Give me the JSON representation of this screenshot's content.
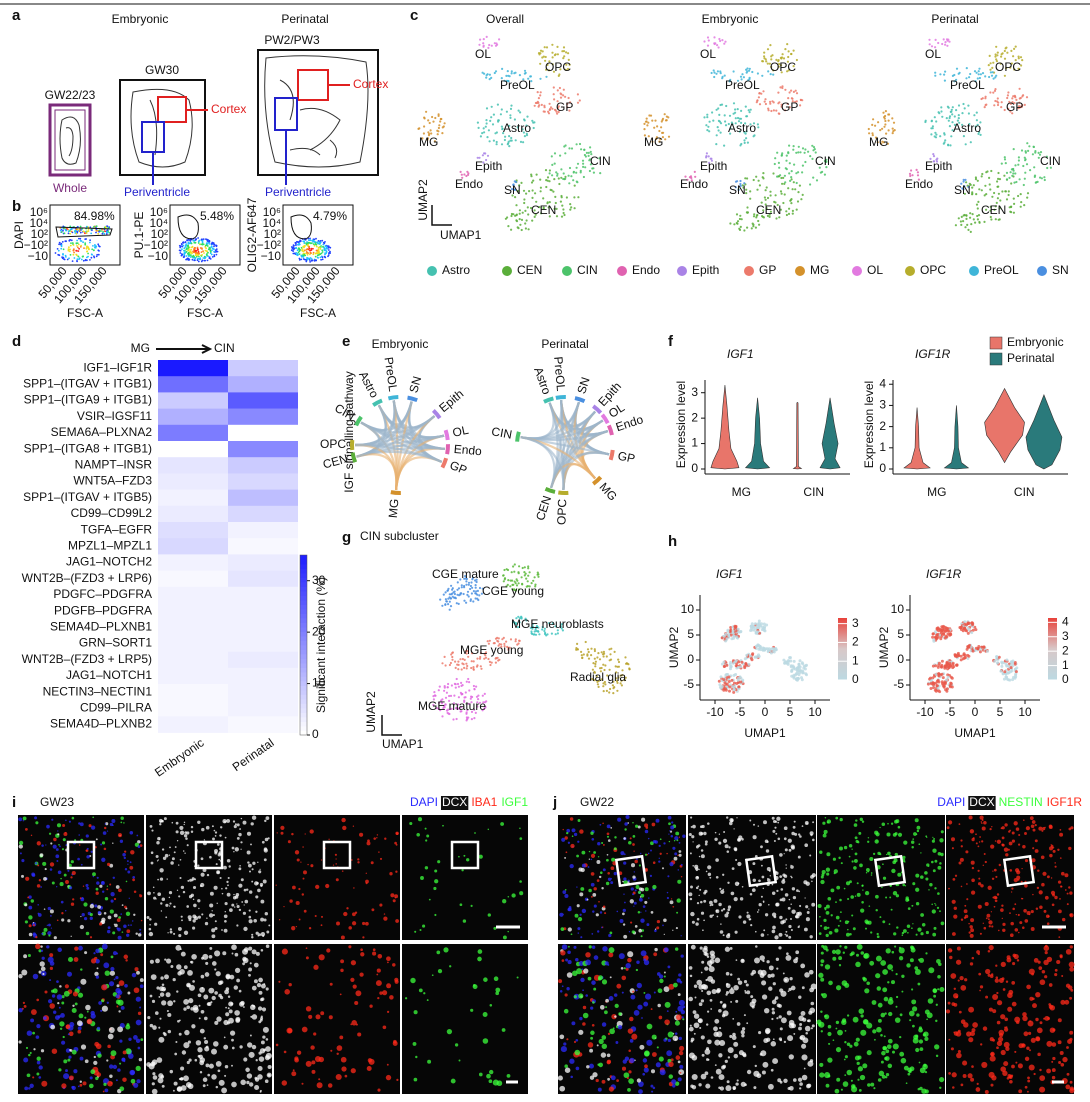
{
  "panels": {
    "a": {
      "label": "a",
      "embryonic": "Embryonic",
      "perinatal": "Perinatal",
      "samples": [
        "GW22/23",
        "GW30",
        "PW2/PW3"
      ],
      "whole": "Whole",
      "cortex": "Cortex",
      "periventricle": "Periventricle"
    },
    "b": {
      "label": "b",
      "plots": [
        {
          "y_label": "DAPI",
          "gate": "84.98%"
        },
        {
          "y_label": "PU.1-PE",
          "gate": "5.48%"
        },
        {
          "y_label": "OLIG2-AF647",
          "gate": "4.79%"
        }
      ],
      "x_label": "FSC-A",
      "x_ticks": [
        "50,000",
        "100,000",
        "150,000"
      ],
      "y_ticks": [
        "10⁶",
        "10⁴",
        "10²",
        "−10²",
        "−10"
      ]
    },
    "c": {
      "label": "c",
      "titles": [
        "Overall",
        "Embryonic",
        "Perinatal"
      ],
      "axis": [
        "UMAP1",
        "UMAP2"
      ],
      "legend": [
        {
          "name": "Astro",
          "color": "#45c1b0"
        },
        {
          "name": "CEN",
          "color": "#5aae3a"
        },
        {
          "name": "CIN",
          "color": "#4cc36a"
        },
        {
          "name": "Endo",
          "color": "#e062b0"
        },
        {
          "name": "Epith",
          "color": "#a983e6"
        },
        {
          "name": "GP",
          "color": "#ec7a6b"
        },
        {
          "name": "MG",
          "color": "#d4912b"
        },
        {
          "name": "OL",
          "color": "#e27ae0"
        },
        {
          "name": "OPC",
          "color": "#b6ad2c"
        },
        {
          "name": "PreOL",
          "color": "#3fb5d8"
        },
        {
          "name": "SN",
          "color": "#4a8fe0"
        }
      ]
    },
    "d": {
      "label": "d",
      "type": "heatmap",
      "source": "MG",
      "target": "CIN",
      "rows": [
        "IGF1–IGF1R",
        "SPP1–(ITGAV + ITGB1)",
        "SPP1–(ITGA9 + ITGB1)",
        "VSIR–IGSF11",
        "SEMA6A–PLXNA2",
        "SPP1–(ITGA8 + ITGB1)",
        "NAMPT–INSR",
        "WNT5A–FZD3",
        "SPP1–(ITGAV + ITGB5)",
        "CD99–CD99L2",
        "TGFA–EGFR",
        "MPZL1–MPZL1",
        "JAG1–NOTCH2",
        "WNT2B–(FZD3 + LRP6)",
        "PDGFC–PDGFRA",
        "PDGFB–PDGFRA",
        "SEMA4D–PLXNB1",
        "GRN–SORT1",
        "WNT2B–(FZD3 + LRP5)",
        "JAG1–NOTCH1",
        "NECTIN3–NECTIN1",
        "CD99–PILRA",
        "SEMA4D–PLXNB2"
      ],
      "columns": [
        "Embryonic",
        "Perinatal"
      ],
      "values": [
        [
          35,
          8
        ],
        [
          22,
          12
        ],
        [
          8,
          25
        ],
        [
          12,
          18
        ],
        [
          20,
          0
        ],
        [
          0,
          18
        ],
        [
          4,
          8
        ],
        [
          3,
          6
        ],
        [
          2,
          10
        ],
        [
          3,
          6
        ],
        [
          5,
          2
        ],
        [
          6,
          1
        ],
        [
          2,
          3
        ],
        [
          1,
          4
        ],
        [
          2,
          2
        ],
        [
          2,
          2
        ],
        [
          2,
          2
        ],
        [
          2,
          2
        ],
        [
          2,
          3
        ],
        [
          2,
          2
        ],
        [
          1,
          2
        ],
        [
          1,
          2
        ],
        [
          2,
          1
        ]
      ],
      "color": "#1a1aff",
      "zlim": [
        0,
        35
      ],
      "zticks": [
        0,
        10,
        20,
        30
      ],
      "colorbar_label": "Significant interaction (%)"
    },
    "e": {
      "label": "e",
      "y_label": "IGF signalling pathway",
      "plots": [
        {
          "title": "Embryonic",
          "nodes": [
            "CIN",
            "Astro",
            "PreOL",
            "SN",
            "Epith",
            "OL",
            "Endo",
            "GP",
            "MG",
            "OPC",
            "CEN"
          ]
        },
        {
          "title": "Perinatal",
          "nodes": [
            "Astro",
            "PreOL",
            "SN",
            "Epith",
            "OL",
            "Endo",
            "GP",
            "MG",
            "OPC",
            "CEN",
            "CIN"
          ]
        }
      ]
    },
    "f": {
      "label": "f",
      "y_label": "Expression level",
      "categories": [
        "MG",
        "CIN"
      ],
      "legend": [
        {
          "name": "Embryonic",
          "color": "#e8756a"
        },
        {
          "name": "Perinatal",
          "color": "#2a7a7b"
        }
      ],
      "plots": [
        {
          "gene": "IGF1",
          "ylim": [
            0,
            3.5
          ],
          "yticks": [
            0,
            1,
            2,
            3
          ]
        },
        {
          "gene": "IGF1R",
          "ylim": [
            0,
            4.2
          ],
          "yticks": [
            0,
            1,
            2,
            3,
            4
          ]
        }
      ]
    },
    "g": {
      "label": "g",
      "title": "CIN subcluster",
      "axis": [
        "UMAP1",
        "UMAP2"
      ],
      "clusters": [
        {
          "name": "CGE mature",
          "color": "#4a8fe0"
        },
        {
          "name": "CGE young",
          "color": "#5ab93a"
        },
        {
          "name": "MGE neuroblasts",
          "color": "#3fc4c0"
        },
        {
          "name": "MGE young",
          "color": "#ec7a6b"
        },
        {
          "name": "MGE mature",
          "color": "#e06be0"
        },
        {
          "name": "Radial glia",
          "color": "#b9a22a"
        }
      ]
    },
    "h": {
      "label": "h",
      "x_label": "UMAP1",
      "y_label": "UMAP2",
      "xlim": [
        -13,
        13
      ],
      "xticks": [
        -10,
        -5,
        0,
        5,
        10
      ],
      "ylim": [
        -8,
        13
      ],
      "yticks": [
        -5,
        0,
        5,
        10
      ],
      "plots": [
        {
          "gene": "IGF1",
          "clim": [
            0,
            3.3
          ],
          "cticks": [
            0,
            1,
            2,
            3
          ]
        },
        {
          "gene": "IGF1R",
          "clim": [
            0,
            4.3
          ],
          "cticks": [
            0,
            1,
            2,
            3,
            4
          ]
        }
      ]
    },
    "i": {
      "label": "i",
      "sample": "GW23",
      "stains": [
        {
          "name": "DAPI",
          "color": "#2b2bff"
        },
        {
          "name": "DCX",
          "color": "#ffffff"
        },
        {
          "name": "IBA1",
          "color": "#ff2a1a"
        },
        {
          "name": "IGF1",
          "color": "#3cff3c"
        }
      ]
    },
    "j": {
      "label": "j",
      "sample": "GW22",
      "stains": [
        {
          "name": "DAPI",
          "color": "#2b2bff"
        },
        {
          "name": "DCX",
          "color": "#ffffff"
        },
        {
          "name": "NESTIN",
          "color": "#3cff3c"
        },
        {
          "name": "IGF1R",
          "color": "#ff2a1a"
        }
      ]
    }
  }
}
